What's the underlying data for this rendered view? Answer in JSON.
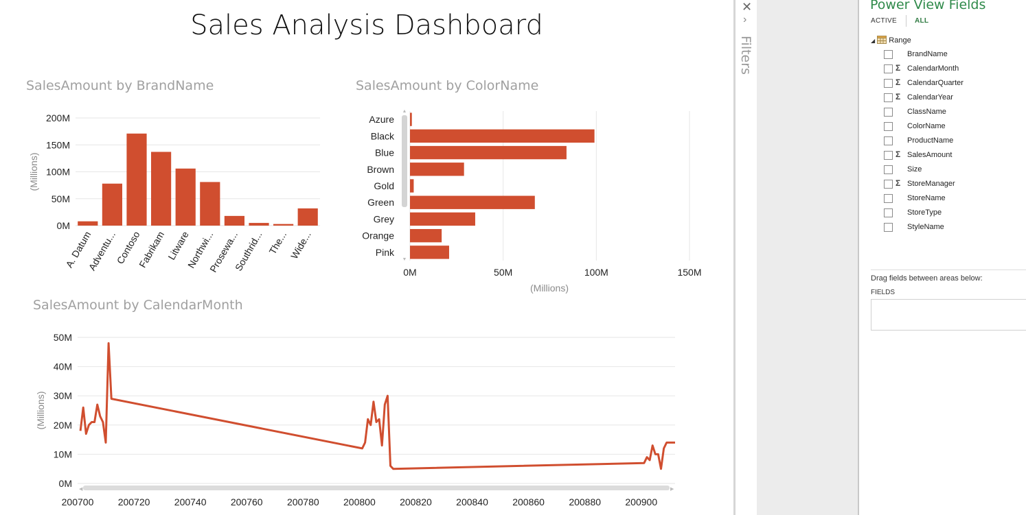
{
  "dashboard": {
    "title": "Sales Analysis Dashboard"
  },
  "colors": {
    "bar": "#d04e2f",
    "line": "#d04e2f",
    "accent_green": "#2f8a4a"
  },
  "chart_data": [
    {
      "type": "bar",
      "title": "SalesAmount by BrandName",
      "ylabel": "(Millions)",
      "xlabel": "",
      "categories": [
        "A. Datum",
        "Adventu...",
        "Contoso",
        "Fabrikam",
        "Litware",
        "Northwi...",
        "Prosewa...",
        "Southrid...",
        "The...",
        "Wide..."
      ],
      "values": [
        8,
        78,
        171,
        137,
        106,
        81,
        18,
        5,
        3,
        32
      ],
      "ylim": [
        0,
        200
      ],
      "yticks": [
        "0M",
        "50M",
        "100M",
        "150M",
        "200M"
      ],
      "grid": true
    },
    {
      "type": "bar",
      "orientation": "horizontal",
      "title": "SalesAmount by ColorName",
      "xlabel": "(Millions)",
      "categories": [
        "Azure",
        "Black",
        "Blue",
        "Brown",
        "Gold",
        "Green",
        "Grey",
        "Orange",
        "Pink"
      ],
      "values": [
        1,
        99,
        84,
        29,
        2,
        67,
        35,
        17,
        21
      ],
      "xlim": [
        0,
        150
      ],
      "xticks": [
        "0M",
        "50M",
        "100M",
        "150M"
      ],
      "grid": true
    },
    {
      "type": "line",
      "title": "SalesAmount by CalendarMonth",
      "ylabel": "(Millions)",
      "ylim": [
        0,
        50
      ],
      "yticks": [
        "0M",
        "10M",
        "20M",
        "30M",
        "40M",
        "50M"
      ],
      "xlim": [
        200700,
        200912
      ],
      "xticks": [
        "200700",
        "200720",
        "200740",
        "200760",
        "200780",
        "200800",
        "200820",
        "200840",
        "200860",
        "200880",
        "200900"
      ],
      "x": [
        200701,
        200702,
        200703,
        200704,
        200705,
        200706,
        200707,
        200708,
        200709,
        200710,
        200711,
        200712,
        200801,
        200802,
        200803,
        200804,
        200805,
        200806,
        200807,
        200808,
        200809,
        200810,
        200811,
        200812,
        200901,
        200902,
        200903,
        200904,
        200905,
        200906,
        200907,
        200908,
        200909,
        200910,
        200911,
        200912
      ],
      "y": [
        18,
        26,
        17,
        20,
        21,
        21,
        27,
        23,
        21,
        14,
        48,
        29,
        12,
        14,
        22,
        20,
        28,
        21,
        22,
        13,
        27,
        30,
        6,
        5,
        7,
        9,
        8,
        13,
        10,
        10,
        5,
        12,
        14,
        14,
        14,
        14
      ],
      "grid": true
    }
  ],
  "filters_pane": {
    "label": "Filters"
  },
  "fields_pane": {
    "title": "Power View Fields",
    "tab_active": "ACTIVE",
    "tab_all": "ALL",
    "table_name": "Range",
    "fields": [
      {
        "name": "BrandName",
        "sigma": false
      },
      {
        "name": "CalendarMonth",
        "sigma": true
      },
      {
        "name": "CalendarQuarter",
        "sigma": true
      },
      {
        "name": "CalendarYear",
        "sigma": true
      },
      {
        "name": "ClassName",
        "sigma": false
      },
      {
        "name": "ColorName",
        "sigma": false
      },
      {
        "name": "ProductName",
        "sigma": false
      },
      {
        "name": "SalesAmount",
        "sigma": true
      },
      {
        "name": "Size",
        "sigma": false
      },
      {
        "name": "StoreManager",
        "sigma": true
      },
      {
        "name": "StoreName",
        "sigma": false
      },
      {
        "name": "StoreType",
        "sigma": false
      },
      {
        "name": "StyleName",
        "sigma": false
      }
    ],
    "drag_hint": "Drag fields between areas below:",
    "fields_area_label": "FIELDS"
  }
}
